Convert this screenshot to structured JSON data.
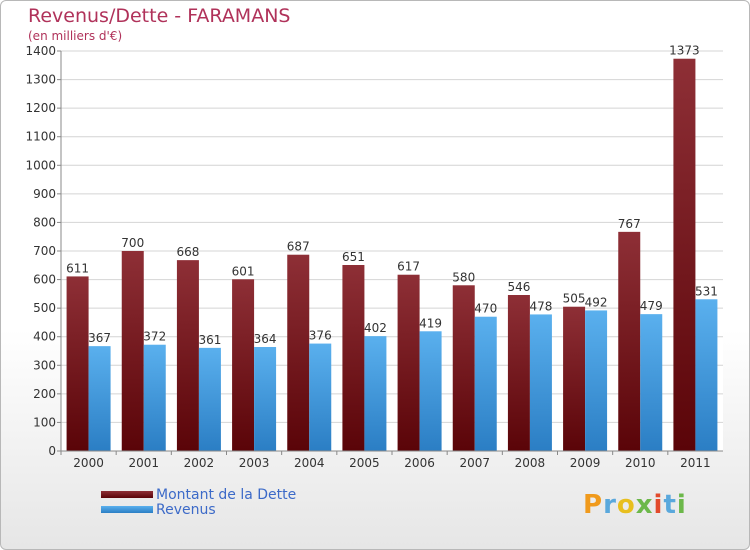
{
  "chart_data": {
    "type": "bar",
    "title": "Revenus/Dette - FARAMANS",
    "subtitle": "(en milliers d'€)",
    "categories": [
      "2000",
      "2001",
      "2002",
      "2003",
      "2004",
      "2005",
      "2006",
      "2007",
      "2008",
      "2009",
      "2010",
      "2011"
    ],
    "series": [
      {
        "name": "Montant de la Dette",
        "values": [
          611,
          700,
          668,
          601,
          687,
          651,
          617,
          580,
          546,
          505,
          767,
          1373
        ],
        "color": "#7a1c22"
      },
      {
        "name": "Revenus",
        "values": [
          367,
          372,
          361,
          364,
          376,
          402,
          419,
          470,
          478,
          492,
          479,
          531
        ],
        "color": "#4a9fe0"
      }
    ],
    "ylim": [
      0,
      1400
    ],
    "yticks": [
      0,
      100,
      200,
      300,
      400,
      500,
      600,
      700,
      800,
      900,
      1000,
      1100,
      1200,
      1300,
      1400
    ],
    "grid": true,
    "legend_position": "bottom-left"
  },
  "logo": {
    "letters": [
      "P",
      "r",
      "o",
      "x",
      "i",
      "t",
      "i"
    ],
    "colors": [
      "#f09a1c",
      "#5aa8dc",
      "#e8bf1e",
      "#6cb84a",
      "#e24a2c",
      "#5aa8dc",
      "#6cb84a"
    ]
  }
}
